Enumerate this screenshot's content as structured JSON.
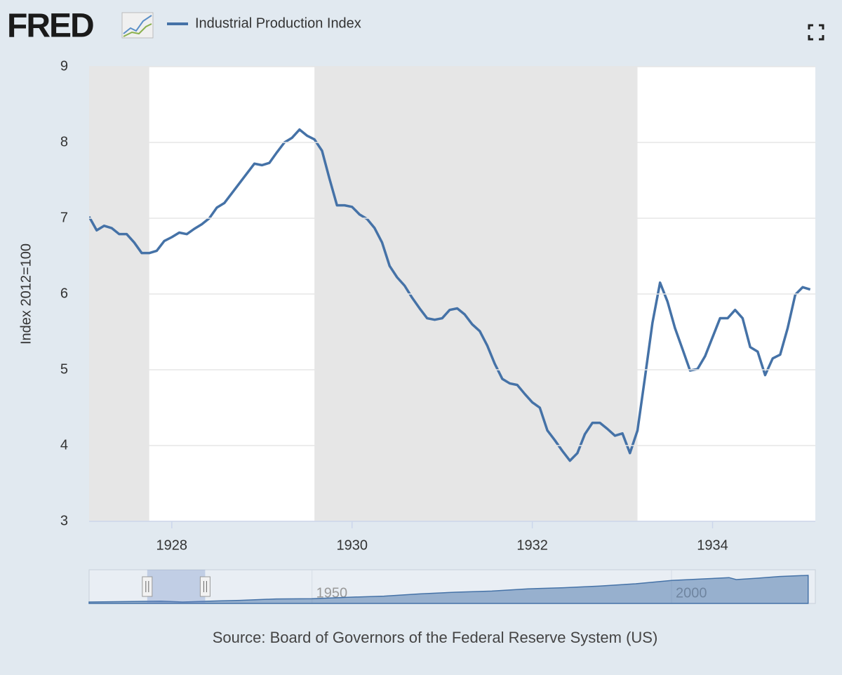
{
  "chart_data": {
    "type": "line",
    "logo": "FRED",
    "title": "Industrial Production Index",
    "y_label": "Index 2012=100",
    "source": "Source: Board of Governors of the Federal Reserve System (US)",
    "xlim": [
      1927.083,
      1935.14
    ],
    "xticks": [
      1928,
      1930,
      1932,
      1934
    ],
    "ylim": [
      3,
      9
    ],
    "yticks": [
      3,
      4,
      5,
      6,
      7,
      8,
      9
    ],
    "grid": true,
    "shaded_ranges": [
      [
        1926.75,
        1927.75
      ],
      [
        1929.583,
        1933.167
      ]
    ],
    "x": [
      1927.083,
      1927.167,
      1927.25,
      1927.333,
      1927.417,
      1927.5,
      1927.583,
      1927.667,
      1927.75,
      1927.833,
      1927.917,
      1928,
      1928.083,
      1928.167,
      1928.25,
      1928.333,
      1928.417,
      1928.5,
      1928.583,
      1928.667,
      1928.75,
      1928.833,
      1928.917,
      1929,
      1929.083,
      1929.167,
      1929.25,
      1929.333,
      1929.417,
      1929.5,
      1929.583,
      1929.667,
      1929.75,
      1929.833,
      1929.917,
      1930,
      1930.083,
      1930.167,
      1930.25,
      1930.333,
      1930.417,
      1930.5,
      1930.583,
      1930.667,
      1930.75,
      1930.833,
      1930.917,
      1931,
      1931.083,
      1931.167,
      1931.25,
      1931.333,
      1931.417,
      1931.5,
      1931.583,
      1931.667,
      1931.75,
      1931.833,
      1931.917,
      1932,
      1932.083,
      1932.167,
      1932.25,
      1932.333,
      1932.417,
      1932.5,
      1932.583,
      1932.667,
      1932.75,
      1932.833,
      1932.917,
      1933,
      1933.083,
      1933.167,
      1933.25,
      1933.333,
      1933.417,
      1933.5,
      1933.583,
      1933.667,
      1933.75,
      1933.833,
      1933.917,
      1934,
      1934.083,
      1934.167,
      1934.25,
      1934.333,
      1934.417,
      1934.5,
      1934.583,
      1934.667,
      1934.75,
      1934.833,
      1934.917,
      1935,
      1935.083
    ],
    "series": [
      {
        "name": "Industrial Production Index",
        "color": "#4572a7",
        "values": [
          7.02,
          6.84,
          6.9,
          6.87,
          6.79,
          6.79,
          6.68,
          6.54,
          6.54,
          6.57,
          6.7,
          6.75,
          6.81,
          6.79,
          6.86,
          6.92,
          7.0,
          7.14,
          7.2,
          7.33,
          7.46,
          7.59,
          7.72,
          7.7,
          7.73,
          7.87,
          8.0,
          8.06,
          8.17,
          8.09,
          8.04,
          7.89,
          7.52,
          7.17,
          7.17,
          7.15,
          7.05,
          6.99,
          6.87,
          6.68,
          6.37,
          6.22,
          6.11,
          5.95,
          5.81,
          5.68,
          5.66,
          5.68,
          5.79,
          5.81,
          5.73,
          5.6,
          5.51,
          5.32,
          5.08,
          4.88,
          4.82,
          4.8,
          4.68,
          4.57,
          4.5,
          4.2,
          4.07,
          3.93,
          3.8,
          3.9,
          4.15,
          4.3,
          4.3,
          4.22,
          4.13,
          4.16,
          3.9,
          4.2,
          4.9,
          5.62,
          6.15,
          5.9,
          5.55,
          5.27,
          4.99,
          5.01,
          5.18,
          5.43,
          5.68,
          5.68,
          5.79,
          5.68,
          5.3,
          5.24,
          4.93,
          5.15,
          5.2,
          5.55,
          5.99,
          6.09,
          6.06
        ]
      }
    ],
    "navigator": {
      "xlim": [
        1919,
        2020
      ],
      "xticks": [
        1950,
        2000
      ],
      "ylim": [
        0,
        120
      ],
      "x": [
        1919,
        1925,
        1929,
        1932,
        1937,
        1940,
        1945,
        1950,
        1955,
        1960,
        1965,
        1970,
        1975,
        1980,
        1985,
        1990,
        1995,
        2000,
        2005,
        2008,
        2009,
        2012,
        2015,
        2019
      ],
      "values": [
        5,
        7,
        8,
        5,
        9,
        11,
        16,
        17,
        22,
        26,
        34,
        40,
        44,
        52,
        56,
        62,
        70,
        82,
        88,
        92,
        85,
        90,
        96,
        100
      ]
    }
  }
}
